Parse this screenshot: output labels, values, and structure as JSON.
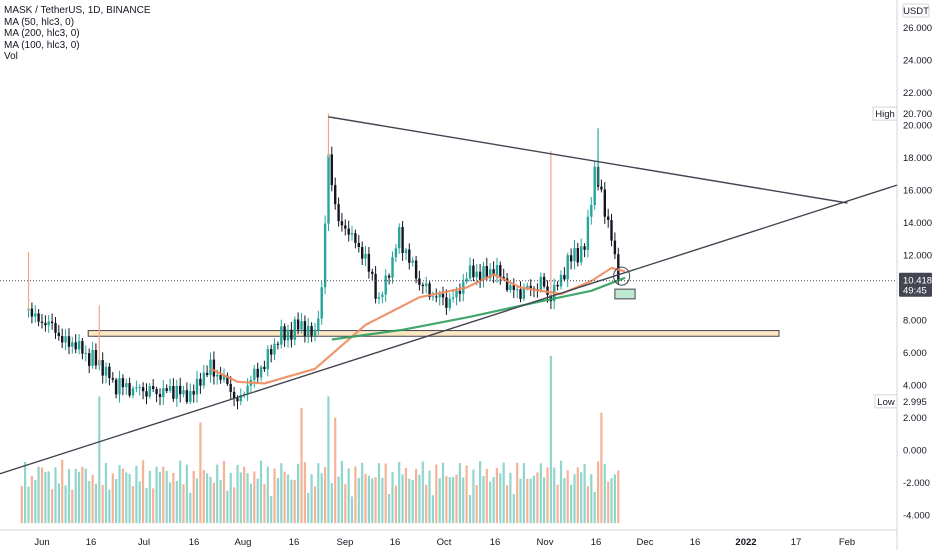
{
  "legend": {
    "symbol_line": "MASK / TetherUS, 1D, BINANCE",
    "ma50": "MA (50, hlc3, 0)",
    "ma200": "MA (200, hlc3, 0)",
    "ma100": "MA (100, hlc3, 0)",
    "vol": "Vol"
  },
  "price_axis": {
    "currency": "USDT",
    "tick_labels": [
      "26.000",
      "24.000",
      "22.000",
      "20.000",
      "18.000",
      "16.000",
      "14.000",
      "12.000",
      "10.418",
      "8.000",
      "6.000",
      "4.000",
      "2.000",
      "0.000",
      "-2.000",
      "-4.000"
    ],
    "high_label": "High",
    "high_value": "20.700",
    "low_label": "Low",
    "low_value": "2.995",
    "last_price": "10.418",
    "countdown": "49:45"
  },
  "time_axis": {
    "tick_labels": [
      "Jun",
      "16",
      "Jul",
      "16",
      "Aug",
      "16",
      "Sep",
      "16",
      "Oct",
      "16",
      "Nov",
      "16",
      "Dec",
      "16",
      "2022",
      "17",
      "Feb"
    ]
  },
  "colors": {
    "up": "#26a69a",
    "down": "#131722",
    "up_volume": "#7ccfc3",
    "down_volume": "#f4a485",
    "ma50": "#f08a5d",
    "ma100": "#2e9d5d",
    "ma200": "#e06c3c",
    "trendline": "#434651",
    "zone_fill": "#fde7c4",
    "zone_border": "#434651",
    "target_box": "#bfe8d1"
  },
  "chart_data": {
    "type": "candlestick",
    "symbol": "MASK / TetherUS",
    "interval": "1D",
    "exchange": "BINANCE",
    "y_axis_range": [
      -4.5,
      27
    ],
    "last_price": 10.418,
    "high": 20.7,
    "low": 2.995,
    "price_path": [
      {
        "date": "2021-05-27",
        "price": 8.6
      },
      {
        "date": "2021-06-01",
        "price": 7.8
      },
      {
        "date": "2021-06-08",
        "price": 6.6
      },
      {
        "date": "2021-06-15",
        "price": 5.6
      },
      {
        "date": "2021-06-18",
        "price": 5.0
      },
      {
        "date": "2021-06-22",
        "price": 3.9
      },
      {
        "date": "2021-07-01",
        "price": 3.7
      },
      {
        "date": "2021-07-10",
        "price": 3.6
      },
      {
        "date": "2021-07-15",
        "price": 3.5
      },
      {
        "date": "2021-07-20",
        "price": 5.2
      },
      {
        "date": "2021-07-28",
        "price": 3.1
      },
      {
        "date": "2021-08-03",
        "price": 4.8
      },
      {
        "date": "2021-08-10",
        "price": 7.1
      },
      {
        "date": "2021-08-16",
        "price": 7.6
      },
      {
        "date": "2021-08-20",
        "price": 7.2
      },
      {
        "date": "2021-08-22",
        "price": 9.6
      },
      {
        "date": "2021-08-24",
        "price": 18.0
      },
      {
        "date": "2021-08-27",
        "price": 14.0
      },
      {
        "date": "2021-09-03",
        "price": 12.3
      },
      {
        "date": "2021-09-08",
        "price": 9.1
      },
      {
        "date": "2021-09-14",
        "price": 13.2
      },
      {
        "date": "2021-09-20",
        "price": 10.3
      },
      {
        "date": "2021-09-28",
        "price": 9.0
      },
      {
        "date": "2021-10-05",
        "price": 10.8
      },
      {
        "date": "2021-10-12",
        "price": 11.0
      },
      {
        "date": "2021-10-20",
        "price": 9.6
      },
      {
        "date": "2021-10-26",
        "price": 10.4
      },
      {
        "date": "2021-10-29",
        "price": 9.4
      },
      {
        "date": "2021-11-03",
        "price": 11.5
      },
      {
        "date": "2021-11-08",
        "price": 12.5
      },
      {
        "date": "2021-11-11",
        "price": 17.0
      },
      {
        "date": "2021-11-15",
        "price": 14.2
      },
      {
        "date": "2021-11-18",
        "price": 10.418
      }
    ],
    "wick_spikes": [
      {
        "date": "2021-05-27",
        "high": 12.2
      },
      {
        "date": "2021-06-17",
        "high": 8.9
      },
      {
        "date": "2021-08-24",
        "high": 20.7
      },
      {
        "date": "2021-10-29",
        "high": 18.4
      },
      {
        "date": "2021-11-12",
        "high": 19.8
      }
    ],
    "moving_averages": [
      {
        "name": "MA (50, hlc3, 0)",
        "points": [
          {
            "date": "2021-07-20",
            "value": 5.0
          },
          {
            "date": "2021-07-28",
            "value": 4.2
          },
          {
            "date": "2021-08-05",
            "value": 4.1
          },
          {
            "date": "2021-08-20",
            "value": 5.0
          },
          {
            "date": "2021-09-04",
            "value": 7.7
          },
          {
            "date": "2021-09-20",
            "value": 9.4
          },
          {
            "date": "2021-10-04",
            "value": 10.0
          },
          {
            "date": "2021-10-12",
            "value": 10.8
          },
          {
            "date": "2021-10-20",
            "value": 10.0
          },
          {
            "date": "2021-11-01",
            "value": 9.6
          },
          {
            "date": "2021-11-10",
            "value": 10.4
          },
          {
            "date": "2021-11-16",
            "value": 11.2
          },
          {
            "date": "2021-11-20",
            "value": 11.0
          }
        ]
      },
      {
        "name": "MA (100, hlc3, 0)",
        "points": [
          {
            "date": "2021-08-25",
            "value": 6.8
          },
          {
            "date": "2021-09-15",
            "value": 7.4
          },
          {
            "date": "2021-10-05",
            "value": 8.2
          },
          {
            "date": "2021-10-25",
            "value": 9.1
          },
          {
            "date": "2021-11-10",
            "value": 9.8
          },
          {
            "date": "2021-11-20",
            "value": 10.6
          }
        ]
      }
    ],
    "volume": [
      {
        "date": "2021-06-17",
        "value": 3.3,
        "direction": "up"
      },
      {
        "date": "2021-07-17",
        "value": 1.7,
        "direction": "down"
      },
      {
        "date": "2021-08-16",
        "value": 2.6,
        "direction": "down"
      },
      {
        "date": "2021-08-24",
        "value": 3.3,
        "direction": "up"
      },
      {
        "date": "2021-08-26",
        "value": 2.0,
        "direction": "down"
      },
      {
        "date": "2021-10-29",
        "value": 5.8,
        "direction": "up"
      },
      {
        "date": "2021-11-13",
        "value": 2.3,
        "direction": "down"
      }
    ],
    "drawings": {
      "descending_trendline": [
        {
          "date": "2021-08-24",
          "price": 20.5
        },
        {
          "date": "2022-01-25",
          "price": 15.2
        }
      ],
      "ascending_trendline": [
        {
          "date": "2021-05-25",
          "price": -1.4
        },
        {
          "date": "2022-02-20",
          "price": 16.3
        }
      ],
      "support_zone": {
        "start": "2021-06-14",
        "end": "2022-01-05",
        "low": 7.0,
        "high": 7.35
      },
      "target_box": {
        "start": "2021-11-17",
        "end": "2021-11-23",
        "low": 9.3,
        "high": 9.9
      }
    }
  }
}
